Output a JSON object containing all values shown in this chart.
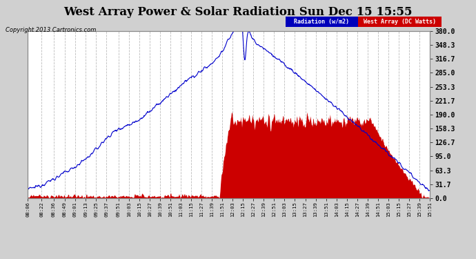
{
  "title": "West Array Power & Solar Radiation Sun Dec 15 15:55",
  "copyright": "Copyright 2013 Cartronics.com",
  "legend_radiation": "Radiation (w/m2)",
  "legend_west": "West Array (DC Watts)",
  "legend_radiation_bg": "#0000bb",
  "legend_west_bg": "#cc0000",
  "ylabel_right_values": [
    0.0,
    31.7,
    63.3,
    95.0,
    126.7,
    158.3,
    190.0,
    221.7,
    253.3,
    285.0,
    316.7,
    348.3,
    380.0
  ],
  "ymax": 380.0,
  "ymin": 0.0,
  "background_color": "#d0d0d0",
  "plot_bg_color": "#ffffff",
  "grid_color": "#bbbbbb",
  "radiation_color": "#0000cc",
  "west_color": "#cc0000",
  "tick_labels": [
    "08:06",
    "08:22",
    "08:36",
    "08:49",
    "09:01",
    "09:13",
    "09:25",
    "09:37",
    "09:51",
    "10:03",
    "10:15",
    "10:27",
    "10:39",
    "10:51",
    "11:03",
    "11:15",
    "11:27",
    "11:39",
    "11:51",
    "12:03",
    "12:15",
    "12:27",
    "12:39",
    "12:51",
    "13:03",
    "13:15",
    "13:27",
    "13:39",
    "13:51",
    "14:03",
    "14:15",
    "14:27",
    "14:39",
    "14:51",
    "15:03",
    "15:15",
    "15:27",
    "15:39",
    "15:51"
  ]
}
